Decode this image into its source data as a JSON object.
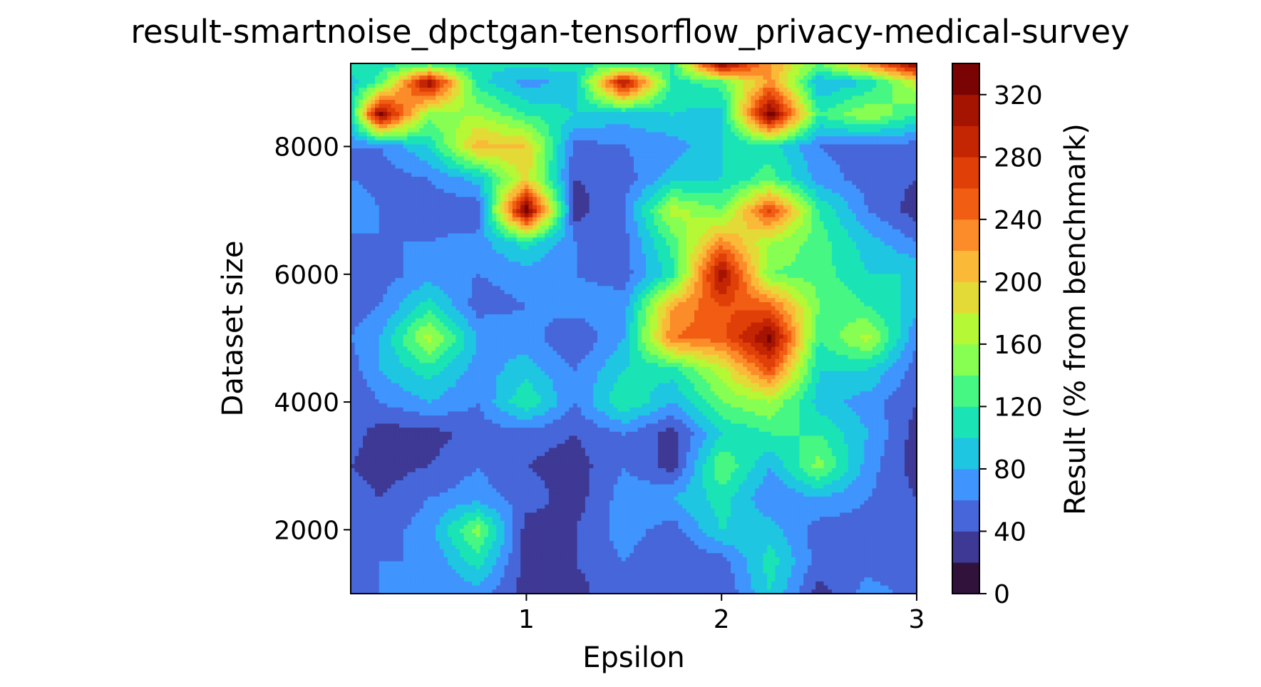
{
  "chart_data": {
    "type": "heatmap",
    "subtype": "filled-contour",
    "title": "result-smartnoise_dpctgan-tensorflow_privacy-medical-survey",
    "xlabel": "Epsilon",
    "ylabel": "Dataset size",
    "colorbar_label": "Result (% from benchmark)",
    "xlim": [
      0.1,
      3.0
    ],
    "ylim": [
      1000,
      9300
    ],
    "x_ticks": [
      1,
      2,
      3
    ],
    "y_ticks": [
      2000,
      4000,
      6000,
      8000
    ],
    "colorbar_ticks": [
      0,
      40,
      80,
      120,
      160,
      200,
      240,
      280,
      320
    ],
    "levels": [
      0,
      20,
      40,
      60,
      80,
      100,
      120,
      140,
      160,
      180,
      200,
      220,
      240,
      260,
      280,
      300,
      320,
      340
    ],
    "level_colors": [
      "#30123b",
      "#3e3994",
      "#4666d9",
      "#3f95fd",
      "#1fc6e1",
      "#1ae4b6",
      "#47f783",
      "#86fe52",
      "#b4f836",
      "#e4da37",
      "#fbb938",
      "#fb8c29",
      "#f15d13",
      "#e04008",
      "#c42503",
      "#a51301",
      "#7a0403"
    ],
    "x": [
      0.1,
      0.25,
      0.5,
      0.75,
      1.0,
      1.25,
      1.5,
      1.75,
      2.0,
      2.25,
      2.5,
      2.75,
      3.0
    ],
    "y": [
      1000,
      1500,
      2000,
      2500,
      3000,
      3500,
      4000,
      4500,
      5000,
      5500,
      6000,
      6500,
      7000,
      7500,
      8000,
      8500,
      9000,
      9300
    ],
    "z": [
      [
        60,
        60,
        60,
        70,
        30,
        30,
        60,
        40,
        40,
        100,
        30,
        70,
        50
      ],
      [
        40,
        60,
        60,
        110,
        30,
        40,
        60,
        40,
        50,
        110,
        50,
        50,
        50
      ],
      [
        40,
        50,
        70,
        150,
        30,
        40,
        70,
        50,
        100,
        90,
        50,
        50,
        50
      ],
      [
        50,
        40,
        60,
        70,
        50,
        30,
        70,
        80,
        110,
        60,
        80,
        60,
        40
      ],
      [
        40,
        30,
        40,
        60,
        40,
        30,
        60,
        30,
        140,
        80,
        150,
        70,
        30
      ],
      [
        50,
        30,
        30,
        50,
        50,
        40,
        60,
        30,
        100,
        120,
        120,
        80,
        30
      ],
      [
        40,
        60,
        80,
        60,
        120,
        60,
        120,
        80,
        140,
        160,
        90,
        70,
        40
      ],
      [
        50,
        80,
        110,
        70,
        90,
        60,
        100,
        110,
        170,
        260,
        100,
        100,
        50
      ],
      [
        60,
        80,
        170,
        80,
        70,
        40,
        80,
        240,
        250,
        330,
        120,
        170,
        60
      ],
      [
        50,
        60,
        110,
        50,
        60,
        70,
        70,
        220,
        260,
        250,
        140,
        120,
        90
      ],
      [
        40,
        50,
        70,
        60,
        70,
        60,
        50,
        110,
        320,
        140,
        130,
        100,
        100
      ],
      [
        50,
        60,
        60,
        70,
        110,
        60,
        50,
        130,
        230,
        160,
        130,
        90,
        60
      ],
      [
        80,
        60,
        50,
        40,
        340,
        30,
        60,
        170,
        140,
        270,
        120,
        60,
        30
      ],
      [
        60,
        50,
        60,
        90,
        190,
        40,
        50,
        90,
        100,
        130,
        70,
        50,
        40
      ],
      [
        60,
        60,
        100,
        210,
        200,
        50,
        60,
        70,
        100,
        110,
        60,
        50,
        50
      ],
      [
        100,
        330,
        150,
        160,
        120,
        100,
        90,
        100,
        90,
        340,
        120,
        160,
        120
      ],
      [
        90,
        130,
        320,
        110,
        70,
        90,
        310,
        110,
        130,
        230,
        80,
        100,
        180
      ],
      [
        110,
        110,
        120,
        100,
        110,
        110,
        120,
        120,
        330,
        220,
        140,
        230,
        330
      ]
    ]
  }
}
